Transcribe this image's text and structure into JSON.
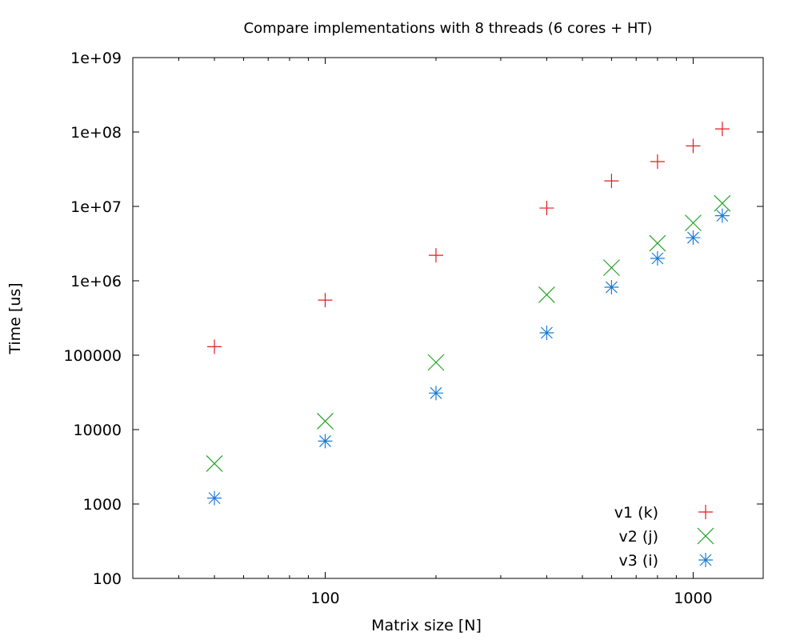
{
  "chart_data": {
    "type": "scatter",
    "title": "Compare implementations with 8 threads (6 cores + HT)",
    "xlabel": "Matrix size [N]",
    "ylabel": "Time [us]",
    "x_scale": "log",
    "y_scale": "log",
    "xlim": [
      30,
      1550
    ],
    "ylim": [
      100,
      1000000000
    ],
    "x_tick_labels": [
      "100",
      "1000"
    ],
    "y_tick_labels": [
      "100",
      "1000",
      "10000",
      "100000",
      "1e+06",
      "1e+07",
      "1e+08",
      "1e+09"
    ],
    "grid": false,
    "legend_position": "bottom-right",
    "series": [
      {
        "name": "v1 (k)",
        "marker": "plus",
        "color": "#e41a1c",
        "x": [
          50,
          100,
          200,
          400,
          600,
          800,
          1000,
          1200
        ],
        "y": [
          130000,
          550000,
          2200000,
          9500000,
          22000000,
          40000000,
          65000000,
          110000000
        ]
      },
      {
        "name": "v2 (j)",
        "marker": "cross",
        "color": "#23a223",
        "x": [
          50,
          100,
          200,
          400,
          600,
          800,
          1000,
          1200
        ],
        "y": [
          3500,
          13000,
          80000,
          650000,
          1500000,
          3200000,
          6000000,
          11000000
        ]
      },
      {
        "name": "v3 (i)",
        "marker": "star",
        "color": "#1a7ad4",
        "x": [
          50,
          100,
          200,
          400,
          600,
          800,
          1000,
          1200
        ],
        "y": [
          1200,
          7000,
          31000,
          200000,
          820000,
          2000000,
          3800000,
          7500000
        ]
      }
    ]
  }
}
